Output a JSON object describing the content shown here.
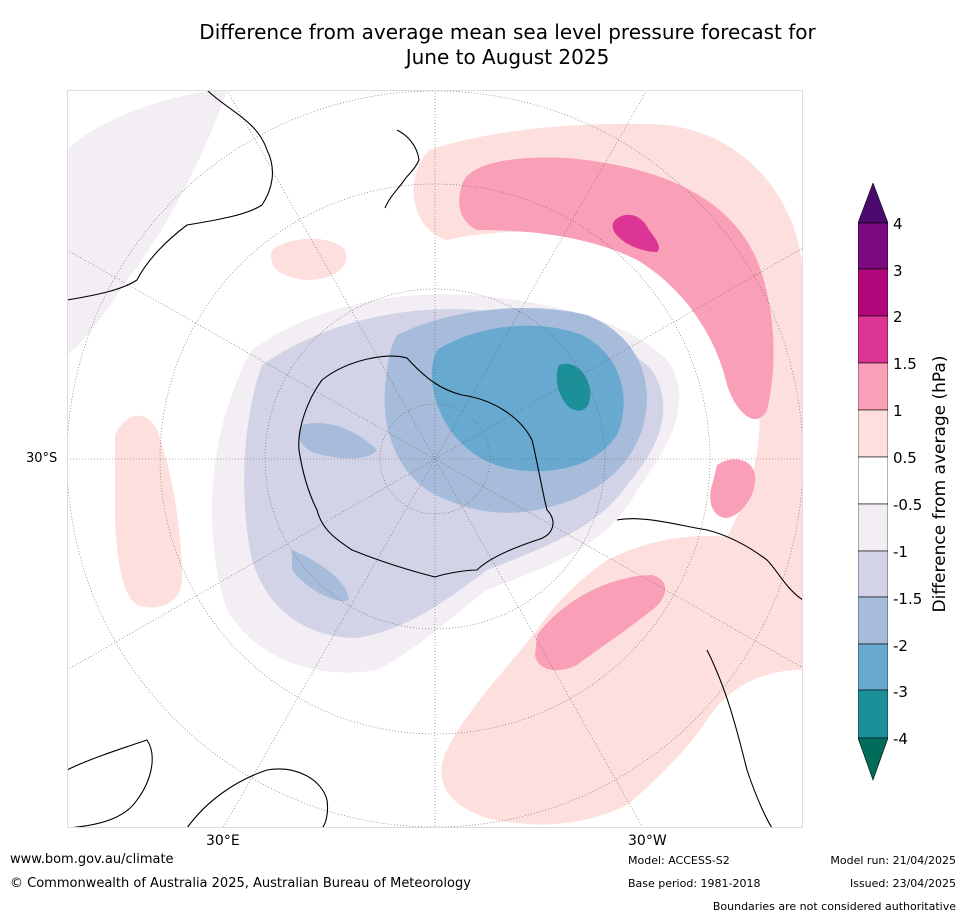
{
  "title": {
    "line1": "Difference from average mean sea level pressure forecast for",
    "line2": "June to August 2025"
  },
  "map_labels": {
    "lat_30s": "30°S",
    "lon_30e": "30°E",
    "lon_30w": "30°W"
  },
  "colorbar": {
    "title": "Difference from average (hPa)",
    "tick_labels": [
      "4",
      "3",
      "2",
      "1.5",
      "1",
      "0.5",
      "-0.5",
      "-1",
      "-1.5",
      "-2",
      "-3",
      "-4"
    ],
    "colors": {
      "over": "#4b0a6e",
      "3_4": "#7a0a7e",
      "2_3": "#b0087a",
      "1.5_2": "#dd3595",
      "1_1.5": "#f9a0b8",
      "0.5_1": "#fde0dd",
      "neutral": "#ffffff",
      "n0.5_n1": "#f2eef4",
      "n1_n1.5": "#d2d3e6",
      "n1.5_n2": "#a7bcdb",
      "n2_n3": "#67a9cf",
      "n3_n4": "#1c9099",
      "under": "#016c59"
    }
  },
  "footer": {
    "website": "www.bom.gov.au/climate",
    "copyright": "© Commonwealth of Australia 2025, Australian Bureau of Meteorology",
    "model": "Model: ACCESS-S2",
    "base_period": "Base period: 1981-2018",
    "model_run": "Model run: 21/04/2025",
    "issued": "Issued: 23/04/2025",
    "disclaimer": "Boundaries are not considered authoritative"
  }
}
